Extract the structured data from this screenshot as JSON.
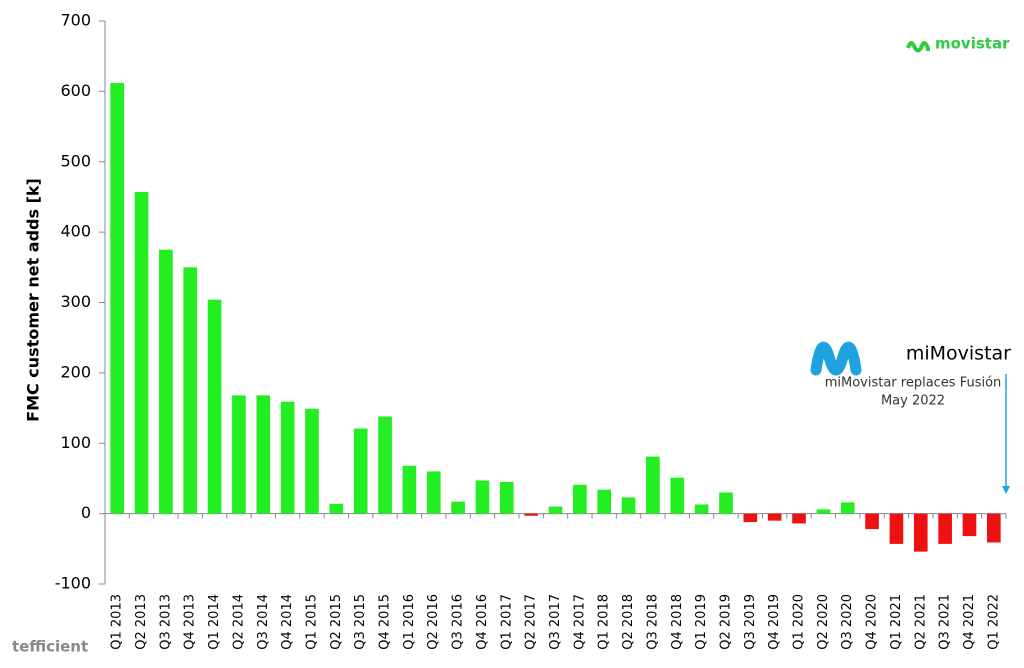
{
  "chart_data": {
    "type": "bar",
    "y_label": "FMC customer net adds [k]",
    "categories": [
      "Q1 2013",
      "Q2 2013",
      "Q3 2013",
      "Q4 2013",
      "Q1 2014",
      "Q2 2014",
      "Q3 2014",
      "Q4 2014",
      "Q1 2015",
      "Q2 2015",
      "Q3 2015",
      "Q4 2015",
      "Q1 2016",
      "Q2 2016",
      "Q3 2016",
      "Q4 2016",
      "Q1 2017",
      "Q2 2017",
      "Q3 2017",
      "Q4 2017",
      "Q1 2018",
      "Q2 2018",
      "Q3 2018",
      "Q4 2018",
      "Q1 2019",
      "Q2 2019",
      "Q3 2019",
      "Q4 2019",
      "Q1 2020",
      "Q2 2020",
      "Q3 2020",
      "Q4 2020",
      "Q1 2021",
      "Q2 2021",
      "Q3 2021",
      "Q4 2021",
      "Q1 2022"
    ],
    "values": [
      612,
      457,
      375,
      350,
      304,
      168,
      168,
      159,
      149,
      14,
      121,
      138,
      68,
      60,
      17,
      47,
      45,
      -3,
      10,
      41,
      34,
      23,
      81,
      51,
      13,
      30,
      -12,
      -10,
      -14,
      6,
      16,
      -22,
      -43,
      -54,
      -43,
      -32,
      -41
    ],
    "positive_color": "#22ee22",
    "negative_color": "#ee1111",
    "ylim": [
      -100,
      700
    ],
    "yticks": [
      -100,
      0,
      100,
      200,
      300,
      400,
      500,
      600,
      700
    ],
    "annotations": [
      "movistar",
      "miMovistar",
      "miMovistar replaces Fusión",
      "May 2022",
      "tefficient"
    ]
  }
}
